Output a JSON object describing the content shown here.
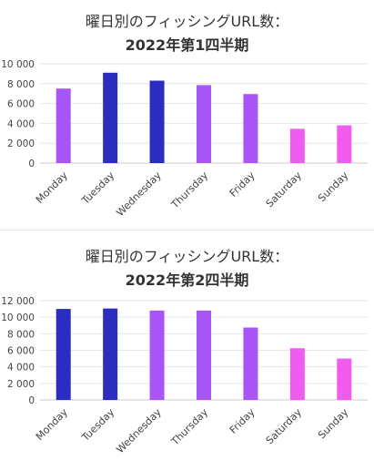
{
  "chart_data": [
    {
      "type": "bar",
      "title_line1": "曜日別のフィッシングURL数：",
      "title_line2": "2022年第1四半期",
      "categories": [
        "Monday",
        "Tuesday",
        "Wednesday",
        "Thursday",
        "Friday",
        "Saturday",
        "Sunday"
      ],
      "values": [
        7500,
        9100,
        8300,
        7850,
        6950,
        3450,
        3800
      ],
      "bar_colors": [
        "#a855f7",
        "#2b2dc0",
        "#2b2dc0",
        "#a855f7",
        "#a855f7",
        "#f05cf0",
        "#f05cf0"
      ],
      "ylim": [
        0,
        10000
      ],
      "yticks": [
        0,
        2000,
        4000,
        6000,
        8000,
        10000
      ],
      "ytick_labels": [
        "0",
        "2 000",
        "4 000",
        "6 000",
        "8 000",
        "10 000"
      ],
      "grid": true,
      "xlabel": "",
      "ylabel": ""
    },
    {
      "type": "bar",
      "title_line1": "曜日別のフィッシングURL数：",
      "title_line2": "2022年第2四半期",
      "categories": [
        "Monday",
        "Tuesday",
        "Wednesday",
        "Thursday",
        "Friday",
        "Saturday",
        "Sunday"
      ],
      "values": [
        11000,
        11050,
        10800,
        10800,
        8750,
        6250,
        5000
      ],
      "bar_colors": [
        "#2b2dc0",
        "#2b2dc0",
        "#a855f7",
        "#a855f7",
        "#a855f7",
        "#f05cf0",
        "#f05cf0"
      ],
      "ylim": [
        0,
        12000
      ],
      "yticks": [
        0,
        2000,
        4000,
        6000,
        8000,
        10000,
        12000
      ],
      "ytick_labels": [
        "0",
        "2 000",
        "4 000",
        "6 000",
        "8 000",
        "10 000",
        "12 000"
      ],
      "grid": true,
      "xlabel": "",
      "ylabel": ""
    }
  ]
}
